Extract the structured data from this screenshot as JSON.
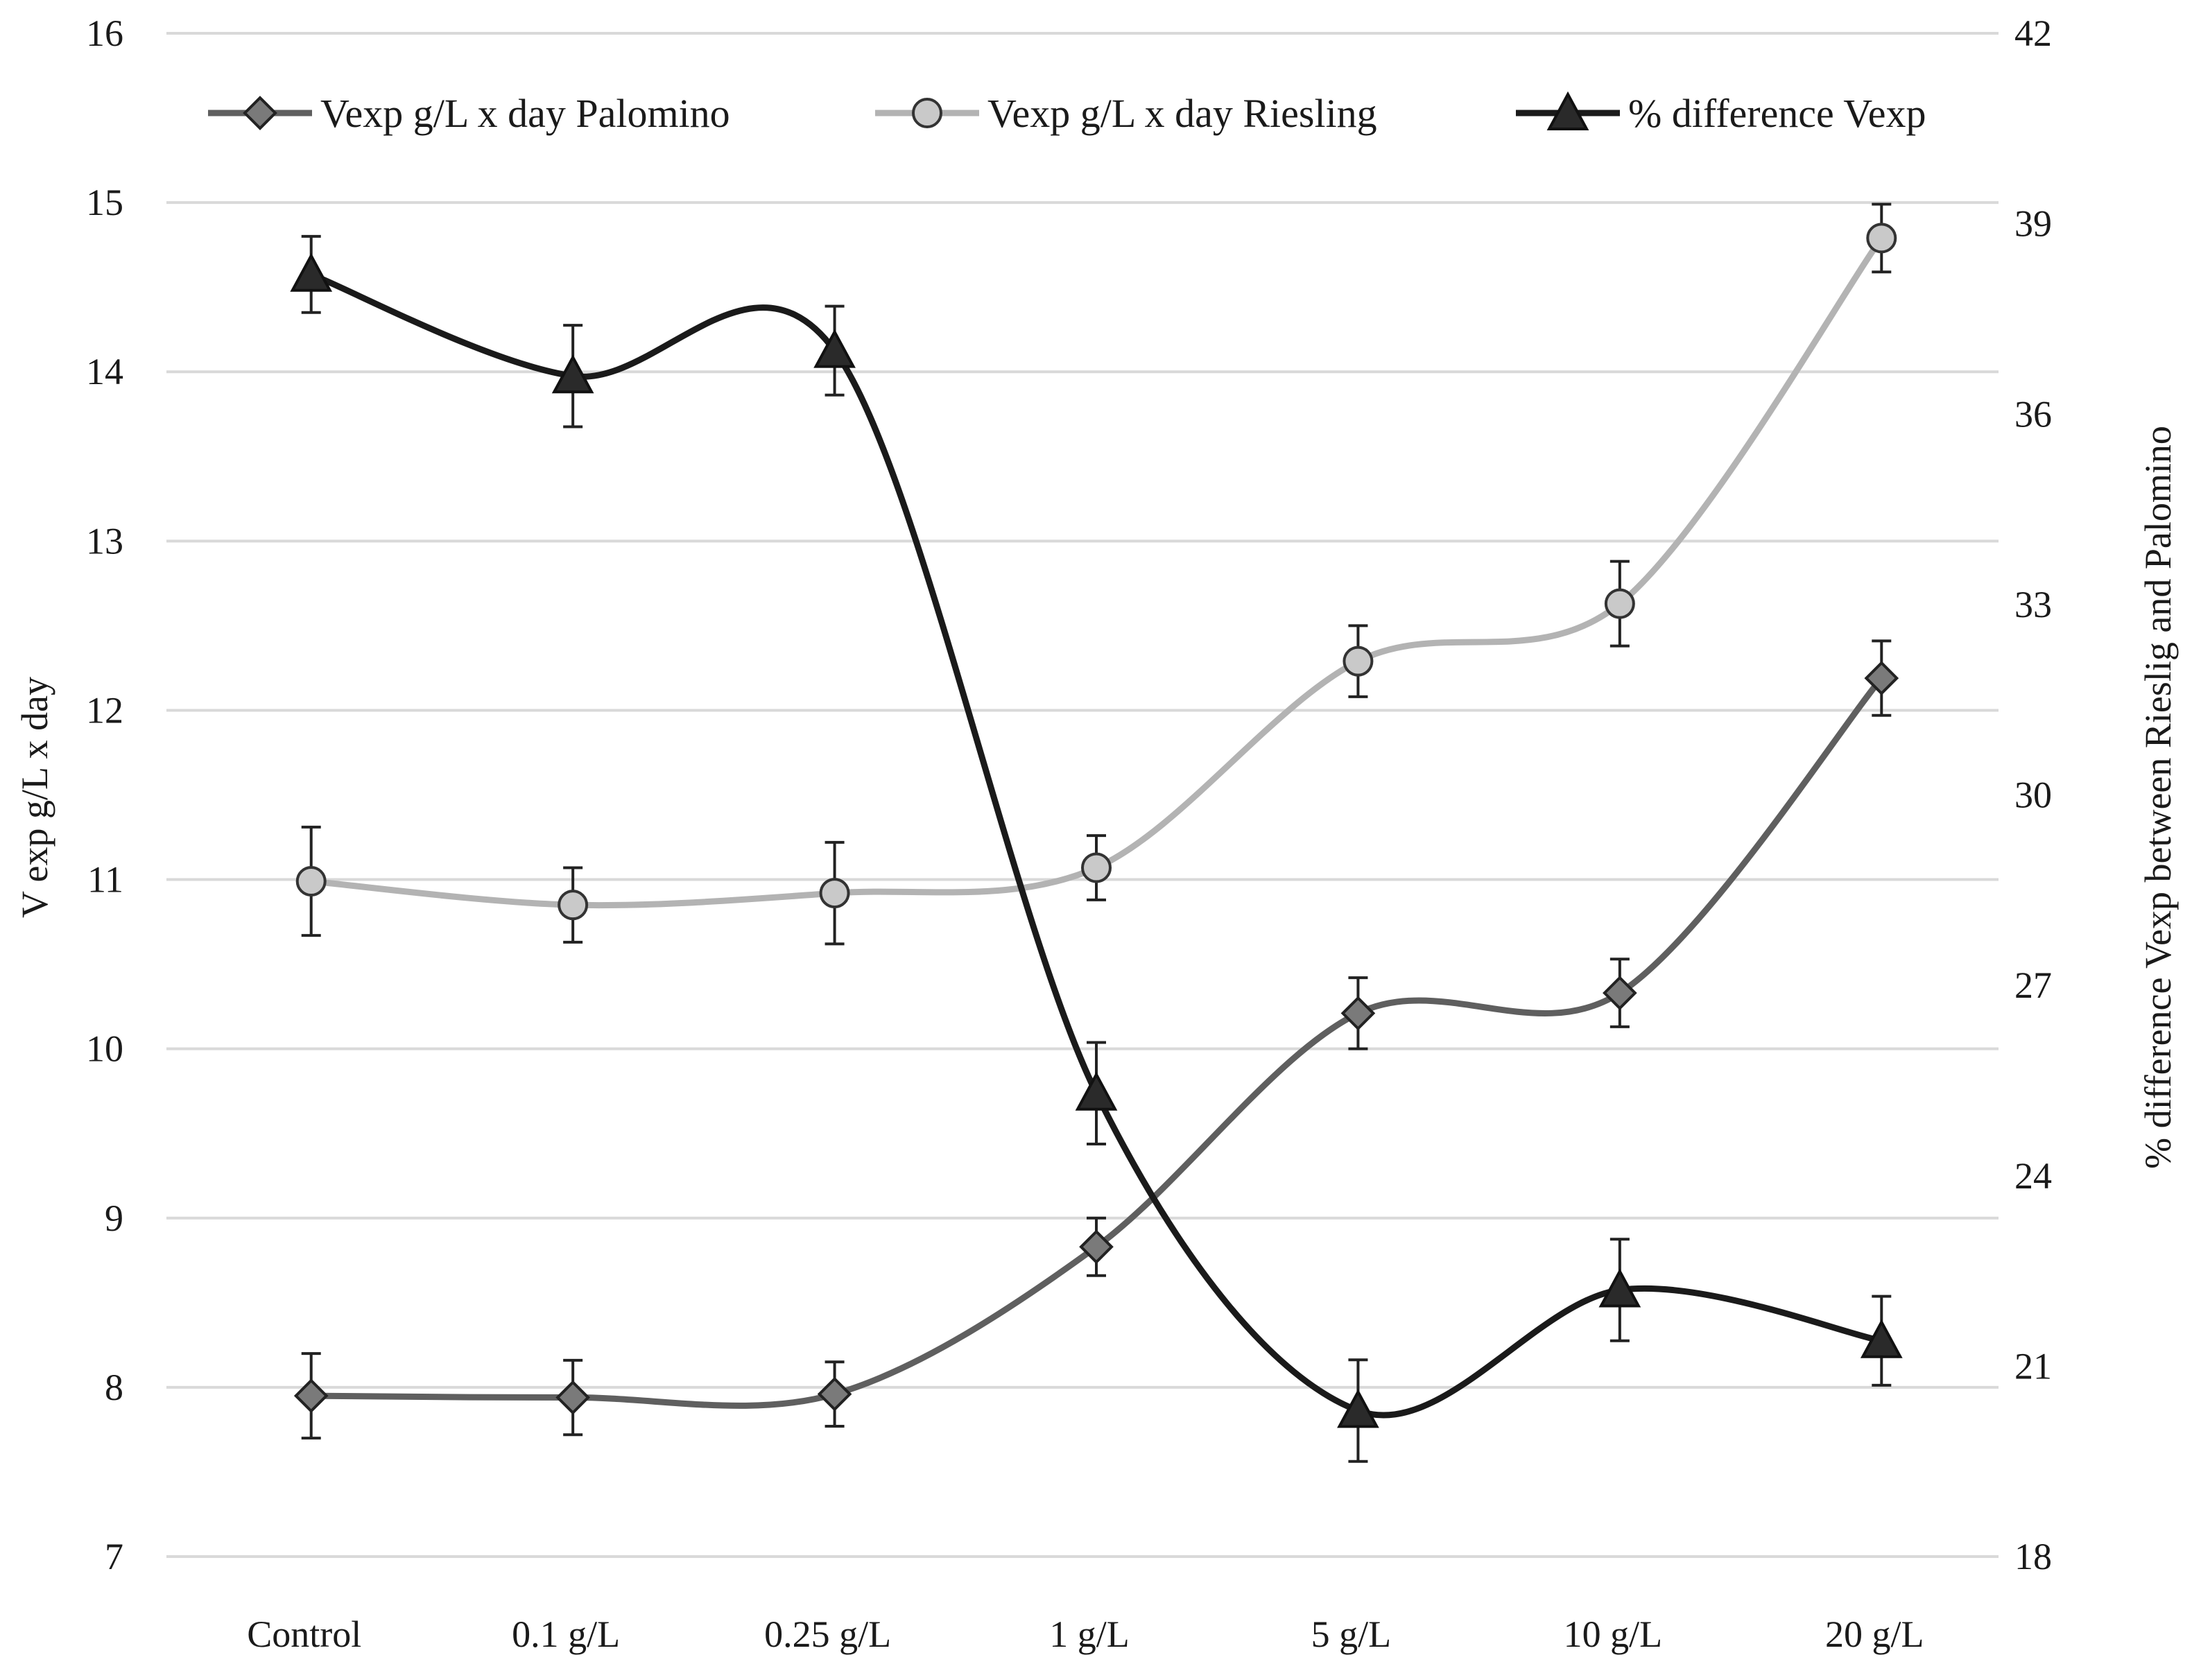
{
  "chart_data": {
    "type": "line",
    "categories": [
      "Control",
      "0.1 g/L",
      "0.25 g/L",
      "1 g/L",
      "5 g/L",
      "10 g/L",
      "20 g/L"
    ],
    "ylabel": "V exp  g/L x day",
    "y2label": "% difference Vexp between Rieslig and Palomino",
    "ylim": [
      7,
      16
    ],
    "y2lim": [
      18,
      42
    ],
    "yticks": [
      "7",
      "8",
      "9",
      "10",
      "11",
      "12",
      "13",
      "14",
      "15",
      "16"
    ],
    "y2ticks": [
      "18",
      "21",
      "24",
      "27",
      "30",
      "33",
      "36",
      "39",
      "42"
    ],
    "grid": true,
    "legend_position": "top",
    "series": [
      {
        "name": "Vexp g/L x day Palomino",
        "axis": "left",
        "marker": "diamond",
        "color": "#5f5f5f",
        "marker_fill": "#7a7a7a",
        "values": [
          7.95,
          7.94,
          7.96,
          8.83,
          10.21,
          10.33,
          12.19
        ],
        "errors": [
          0.25,
          0.22,
          0.19,
          0.17,
          0.21,
          0.2,
          0.22
        ]
      },
      {
        "name": "Vexp g/L x day Riesling",
        "axis": "left",
        "marker": "circle",
        "color": "#b3b3b3",
        "marker_fill": "#c9c9c9",
        "values": [
          10.99,
          10.85,
          10.92,
          11.07,
          12.29,
          12.63,
          14.79
        ],
        "errors": [
          0.32,
          0.22,
          0.3,
          0.19,
          0.21,
          0.25,
          0.2
        ]
      },
      {
        "name": "% difference Vexp",
        "axis": "right",
        "marker": "triangle",
        "color": "#1a1a1a",
        "marker_fill": "#2a2a2a",
        "values": [
          38.2,
          36.6,
          37.0,
          25.3,
          20.3,
          22.2,
          21.4
        ],
        "errors": [
          0.6,
          0.8,
          0.7,
          0.8,
          0.8,
          0.8,
          0.7
        ]
      }
    ]
  }
}
